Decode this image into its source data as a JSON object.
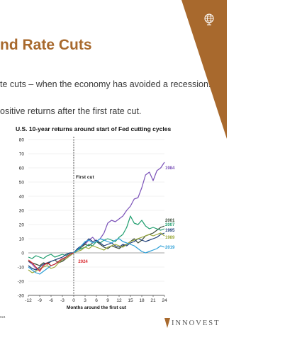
{
  "slide": {
    "title": "nd Rate Cuts",
    "bullet1": "te cuts – when the economy has avoided a recession.",
    "bullet2": "ositive returns after the first rate cut.",
    "footnote": "024",
    "brand": "INNOVEST",
    "logo_icon": "globe-icon"
  },
  "colors": {
    "banner": "#a8692d",
    "title": "#a8692d"
  },
  "chart_data": {
    "type": "line",
    "title": "U.S. 10-year returns around start of Fed cutting cycles",
    "xlabel": "Months around the first cut",
    "ylabel": "",
    "xlim": [
      -12,
      24
    ],
    "ylim": [
      -30,
      80
    ],
    "xticks": [
      -12,
      -9,
      -6,
      -3,
      0,
      3,
      6,
      9,
      12,
      15,
      18,
      21,
      24
    ],
    "yticks": [
      80,
      70,
      60,
      50,
      40,
      30,
      20,
      10,
      0,
      -10,
      -20,
      -30
    ],
    "annotation": "First cut",
    "annotation_x": 0,
    "series": [
      {
        "name": "1984",
        "color": "#7b52b8",
        "x": [
          -12,
          -11,
          -10,
          -9,
          -8,
          -7,
          -6,
          -5,
          -4,
          -3,
          -2,
          -1,
          0,
          1,
          2,
          3,
          4,
          5,
          6,
          7,
          8,
          9,
          10,
          11,
          12,
          13,
          14,
          15,
          16,
          17,
          18,
          19,
          20,
          21,
          22,
          23,
          24
        ],
        "y": [
          -6,
          -8,
          -11,
          -12,
          -9,
          -7,
          -9,
          -8,
          -6,
          -5,
          -3,
          -1,
          0,
          3,
          5,
          6,
          9,
          11,
          8,
          10,
          14,
          21,
          23,
          22,
          24,
          26,
          30,
          33,
          38,
          39,
          46,
          55,
          57,
          51,
          58,
          60,
          64
        ]
      },
      {
        "name": "2001",
        "color": "#3a4a38",
        "x": [
          -12,
          -11,
          -10,
          -9,
          -8,
          -7,
          -6,
          -5,
          -4,
          -3,
          -2,
          -1,
          0,
          1,
          2,
          3,
          4,
          5,
          6,
          7,
          8,
          9,
          10,
          11,
          12,
          13,
          14,
          15,
          16,
          17,
          18,
          19,
          20,
          21,
          22,
          23,
          24
        ],
        "y": [
          -6,
          -7,
          -8,
          -9,
          -7,
          -8,
          -6,
          -5,
          -7,
          -6,
          -4,
          -2,
          0,
          2,
          4,
          6,
          5,
          7,
          8,
          6,
          4,
          3,
          5,
          4,
          3,
          5,
          6,
          8,
          10,
          7,
          9,
          12,
          13,
          14,
          16,
          18,
          19
        ]
      },
      {
        "name": "2007",
        "color": "#1f9e6e",
        "x": [
          -12,
          -11,
          -10,
          -9,
          -8,
          -7,
          -6,
          -5,
          -4,
          -3,
          -2,
          -1,
          0,
          1,
          2,
          3,
          4,
          5,
          6,
          7,
          8,
          9,
          10,
          11,
          12,
          13,
          14,
          15,
          16,
          17,
          18,
          19,
          20,
          21,
          22,
          23,
          24
        ],
        "y": [
          -3,
          -4,
          -2,
          -3,
          -4,
          -2,
          -1,
          -3,
          -2,
          -1,
          -2,
          0,
          0,
          2,
          3,
          4,
          6,
          5,
          8,
          7,
          9,
          10,
          9,
          8,
          11,
          13,
          18,
          26,
          21,
          20,
          23,
          19,
          17,
          18,
          17,
          16,
          17
        ]
      },
      {
        "name": "1995",
        "color": "#1f3f7a",
        "x": [
          -12,
          -11,
          -10,
          -9,
          -8,
          -7,
          -6,
          -5,
          -4,
          -3,
          -2,
          -1,
          0,
          1,
          2,
          3,
          4,
          5,
          6,
          7,
          8,
          9,
          10,
          11,
          12,
          13,
          14,
          15,
          16,
          17,
          18,
          19,
          20,
          21,
          22,
          23,
          24
        ],
        "y": [
          -9,
          -11,
          -12,
          -10,
          -8,
          -7,
          -6,
          -5,
          -4,
          -3,
          -1,
          0,
          0,
          3,
          5,
          7,
          10,
          8,
          9,
          7,
          5,
          6,
          7,
          5,
          4,
          6,
          5,
          7,
          8,
          10,
          9,
          8,
          9,
          10,
          11,
          13,
          14
        ]
      },
      {
        "name": "1989",
        "color": "#9aa83a",
        "x": [
          -12,
          -11,
          -10,
          -9,
          -8,
          -7,
          -6,
          -5,
          -4,
          -3,
          -2,
          -1,
          0,
          1,
          2,
          3,
          4,
          5,
          6,
          7,
          8,
          9,
          10,
          11,
          12,
          13,
          14,
          15,
          16,
          17,
          18,
          19,
          20,
          21,
          22,
          23,
          24
        ],
        "y": [
          -12,
          -14,
          -13,
          -11,
          -10,
          -9,
          -11,
          -10,
          -7,
          -5,
          -4,
          -2,
          0,
          1,
          2,
          4,
          3,
          5,
          4,
          3,
          2,
          4,
          5,
          6,
          5,
          4,
          6,
          8,
          9,
          10,
          11,
          12,
          13,
          12,
          13,
          14,
          12
        ]
      },
      {
        "name": "2019",
        "color": "#2b9ed6",
        "x": [
          -12,
          -11,
          -10,
          -9,
          -8,
          -7,
          -6,
          -5,
          -4,
          -3,
          -2,
          -1,
          0,
          1,
          2,
          3,
          4,
          5,
          6,
          7,
          8,
          9,
          10,
          11,
          12,
          13,
          14,
          15,
          16,
          17,
          18,
          19,
          20,
          21,
          22,
          23,
          24
        ],
        "y": [
          -10,
          -12,
          -14,
          -15,
          -13,
          -11,
          -9,
          -8,
          -6,
          -4,
          -3,
          -1,
          0,
          2,
          5,
          8,
          9,
          7,
          8,
          10,
          9,
          8,
          7,
          9,
          10,
          8,
          7,
          6,
          5,
          3,
          1,
          0,
          1,
          2,
          3,
          5,
          4
        ]
      },
      {
        "name": "2024",
        "color": "#d9262c",
        "x": [
          -12,
          -11,
          -10,
          -9,
          -8,
          -7,
          -6,
          -5,
          -4,
          -3,
          -2,
          -1,
          0
        ],
        "y": [
          -5,
          -7,
          -10,
          -13,
          -9,
          -7,
          -9,
          -8,
          -6,
          -4,
          -3,
          -1,
          0
        ]
      }
    ],
    "end_labels": [
      {
        "series": "1984",
        "text": "1984",
        "y": 60
      },
      {
        "series": "2001",
        "text": "2001",
        "y": 23
      },
      {
        "series": "2007",
        "text": "2007",
        "y": 20
      },
      {
        "series": "1995",
        "text": "1995",
        "y": 16
      },
      {
        "series": "1989",
        "text": "1989",
        "y": 11
      },
      {
        "series": "2019",
        "text": "2019",
        "y": 4
      }
    ],
    "inline_labels": [
      {
        "series": "2024",
        "text": "2024",
        "x": 1.2,
        "y": -6
      }
    ]
  }
}
